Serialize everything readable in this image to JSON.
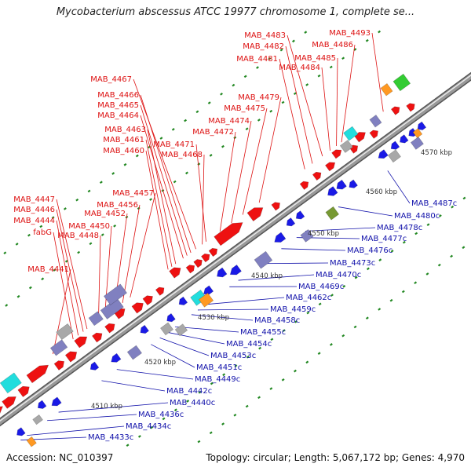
{
  "title": "Mycobacterium abscessus ATCC 19977 chromosome 1, complete se...",
  "footer": {
    "accession": "Accession: NC_010397",
    "summary": "Topology: circular; Length: 5,067,172 bp; Genes: 4,970"
  },
  "colors": {
    "forward": "#ee1111",
    "reverse": "#1a1ae6",
    "pseudo": "#8080c0",
    "gray": "#a8a8a8",
    "cyan": "#22dddd",
    "orange": "#ff9922",
    "green": "#33cc33",
    "olive": "#779933",
    "tick": "#228822",
    "backbone": "#999999",
    "red_label": "#dd1111",
    "blue_label": "#1111aa"
  },
  "scale_labels": [
    "4510 kbp",
    "4520 kbp",
    "4530 kbp",
    "4540 kbp",
    "4550 kbp",
    "4560 kbp",
    "4570 kbp"
  ],
  "forward_labels": [
    "MAB_4441",
    "fabG",
    "MAB_4444",
    "MAB_4446",
    "MAB_4447",
    "MAB_4448",
    "MAB_4450",
    "MAB_4452",
    "MAB_4456",
    "MAB_4457",
    "MAB_4460",
    "MAB_4461",
    "MAB_4463",
    "MAB_4464",
    "MAB_4465",
    "MAB_4466",
    "MAB_4467",
    "MAB_4468",
    "MAB_4471",
    "MAB_4472",
    "MAB_4474",
    "MAB_4475",
    "MAB_4479",
    "MAB_4481",
    "MAB_4482",
    "MAB_4483",
    "MAB_4484",
    "MAB_4485",
    "MAB_4486",
    "MAB_4493"
  ],
  "reverse_labels": [
    "MAB_4433c",
    "MAB_4434c",
    "MAB_4436c",
    "MAB_4440c",
    "MAB_4442c",
    "MAB_4449c",
    "MAB_4451c",
    "MAB_4453c",
    "MAB_4454c",
    "MAB_4455c",
    "MAB_4458c",
    "MAB_4459c",
    "MAB_4462c",
    "MAB_4469c",
    "MAB_4470c",
    "MAB_4473c",
    "MAB_4476c",
    "MAB_4477c",
    "MAB_4478c",
    "MAB_4480c",
    "MAB_4487c"
  ]
}
